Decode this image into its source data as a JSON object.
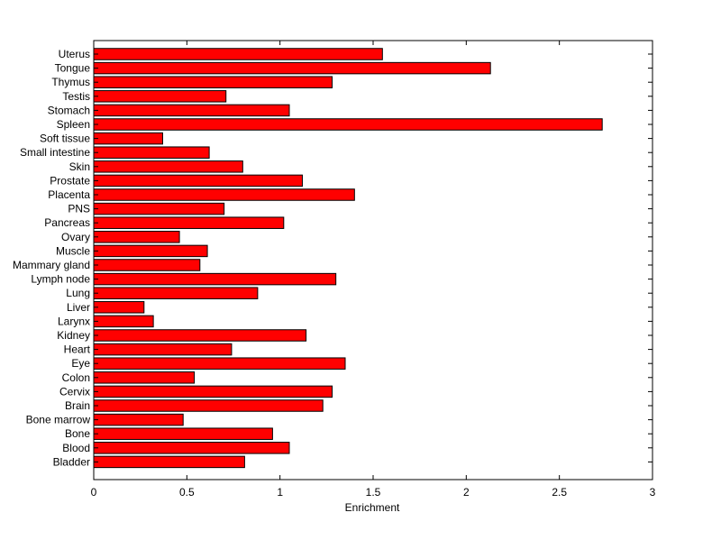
{
  "chart_data": {
    "type": "bar",
    "orientation": "horizontal",
    "title": "",
    "xlabel": "Enrichment",
    "ylabel": "",
    "xlim": [
      0,
      3
    ],
    "xticks": [
      0,
      0.5,
      1,
      1.5,
      2,
      2.5,
      3
    ],
    "xtick_labels": [
      "0",
      "0.5",
      "1",
      "1.5",
      "2",
      "2.5",
      "3"
    ],
    "grid": false,
    "bar_color": "#ff0000",
    "edge_color": "#000000",
    "categories": [
      "Uterus",
      "Tongue",
      "Thymus",
      "Testis",
      "Stomach",
      "Spleen",
      "Soft tissue",
      "Small intestine",
      "Skin",
      "Prostate",
      "Placenta",
      "PNS",
      "Pancreas",
      "Ovary",
      "Muscle",
      "Mammary gland",
      "Lymph node",
      "Lung",
      "Liver",
      "Larynx",
      "Kidney",
      "Heart",
      "Eye",
      "Colon",
      "Cervix",
      "Brain",
      "Bone marrow",
      "Bone",
      "Blood",
      "Bladder"
    ],
    "values": [
      1.55,
      2.13,
      1.28,
      0.71,
      1.05,
      2.73,
      0.37,
      0.62,
      0.8,
      1.12,
      1.4,
      0.7,
      1.02,
      0.46,
      0.61,
      0.57,
      1.3,
      0.88,
      0.27,
      0.32,
      1.14,
      0.74,
      1.35,
      0.54,
      1.28,
      1.23,
      0.48,
      0.96,
      1.05,
      0.81
    ]
  }
}
